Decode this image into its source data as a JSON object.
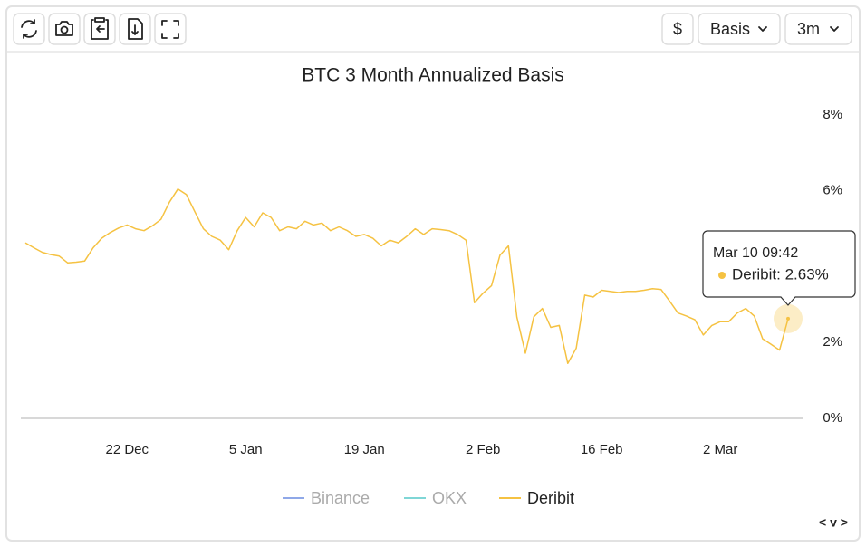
{
  "toolbar": {
    "currency": "$",
    "metric": "Basis",
    "period": "3m"
  },
  "chart_data": {
    "type": "line",
    "title": "BTC 3 Month Annualized Basis",
    "x": [
      "10 Dec",
      "11 Dec",
      "12 Dec",
      "13 Dec",
      "14 Dec",
      "15 Dec",
      "16 Dec",
      "17 Dec",
      "18 Dec",
      "19 Dec",
      "20 Dec",
      "21 Dec",
      "22 Dec",
      "23 Dec",
      "24 Dec",
      "25 Dec",
      "26 Dec",
      "27 Dec",
      "28 Dec",
      "29 Dec",
      "30 Dec",
      "31 Dec",
      "1 Jan",
      "2 Jan",
      "3 Jan",
      "4 Jan",
      "5 Jan",
      "6 Jan",
      "7 Jan",
      "8 Jan",
      "9 Jan",
      "10 Jan",
      "11 Jan",
      "12 Jan",
      "13 Jan",
      "14 Jan",
      "15 Jan",
      "16 Jan",
      "17 Jan",
      "18 Jan",
      "19 Jan",
      "20 Jan",
      "21 Jan",
      "22 Jan",
      "23 Jan",
      "24 Jan",
      "25 Jan",
      "26 Jan",
      "27 Jan",
      "28 Jan",
      "29 Jan",
      "30 Jan",
      "31 Jan",
      "1 Feb",
      "2 Feb",
      "3 Feb",
      "4 Feb",
      "5 Feb",
      "6 Feb",
      "7 Feb",
      "8 Feb",
      "9 Feb",
      "10 Feb",
      "11 Feb",
      "12 Feb",
      "13 Feb",
      "14 Feb",
      "15 Feb",
      "16 Feb",
      "17 Feb",
      "18 Feb",
      "19 Feb",
      "20 Feb",
      "21 Feb",
      "22 Feb",
      "23 Feb",
      "24 Feb",
      "25 Feb",
      "26 Feb",
      "27 Feb",
      "28 Feb",
      "1 Mar",
      "2 Mar",
      "3 Mar",
      "4 Mar",
      "5 Mar",
      "6 Mar",
      "7 Mar",
      "8 Mar",
      "9 Mar",
      "10 Mar"
    ],
    "xticks": [
      "22 Dec",
      "5 Jan",
      "19 Jan",
      "2 Feb",
      "16 Feb",
      "2 Mar"
    ],
    "series": [
      {
        "name": "Binance",
        "color": "#8fa8e8",
        "visible": false
      },
      {
        "name": "OKX",
        "color": "#7fd6d6",
        "visible": false
      },
      {
        "name": "Deribit",
        "color": "#f5c242",
        "visible": true,
        "values": [
          4.63,
          4.5,
          4.38,
          4.32,
          4.28,
          4.1,
          4.12,
          4.15,
          4.5,
          4.75,
          4.9,
          5.02,
          5.1,
          5.0,
          4.95,
          5.08,
          5.25,
          5.7,
          6.05,
          5.9,
          5.45,
          5.0,
          4.8,
          4.7,
          4.45,
          4.95,
          5.3,
          5.05,
          5.42,
          5.3,
          4.95,
          5.05,
          5.0,
          5.2,
          5.1,
          5.15,
          4.95,
          5.05,
          4.95,
          4.8,
          4.85,
          4.75,
          4.55,
          4.7,
          4.63,
          4.8,
          5.0,
          4.85,
          5.0,
          4.98,
          4.95,
          4.85,
          4.7,
          3.05,
          3.3,
          3.5,
          4.3,
          4.55,
          2.67,
          1.72,
          2.68,
          2.9,
          2.4,
          2.45,
          1.45,
          1.85,
          3.25,
          3.2,
          3.38,
          3.35,
          3.32,
          3.35,
          3.35,
          3.38,
          3.42,
          3.4,
          3.1,
          2.78,
          2.7,
          2.6,
          2.2,
          2.45,
          2.55,
          2.55,
          2.78,
          2.9,
          2.7,
          2.1,
          1.95,
          1.8,
          2.63
        ]
      }
    ],
    "ylim": [
      0,
      8
    ],
    "yticks": [
      {
        "value": 0,
        "label": "0%"
      },
      {
        "value": 2,
        "label": "2%"
      },
      {
        "value": 6,
        "label": "6%"
      },
      {
        "value": 8,
        "label": "8%"
      }
    ],
    "tooltip": {
      "title": "Mar 10 09:42",
      "text": "Deribit: 2.63%"
    }
  }
}
